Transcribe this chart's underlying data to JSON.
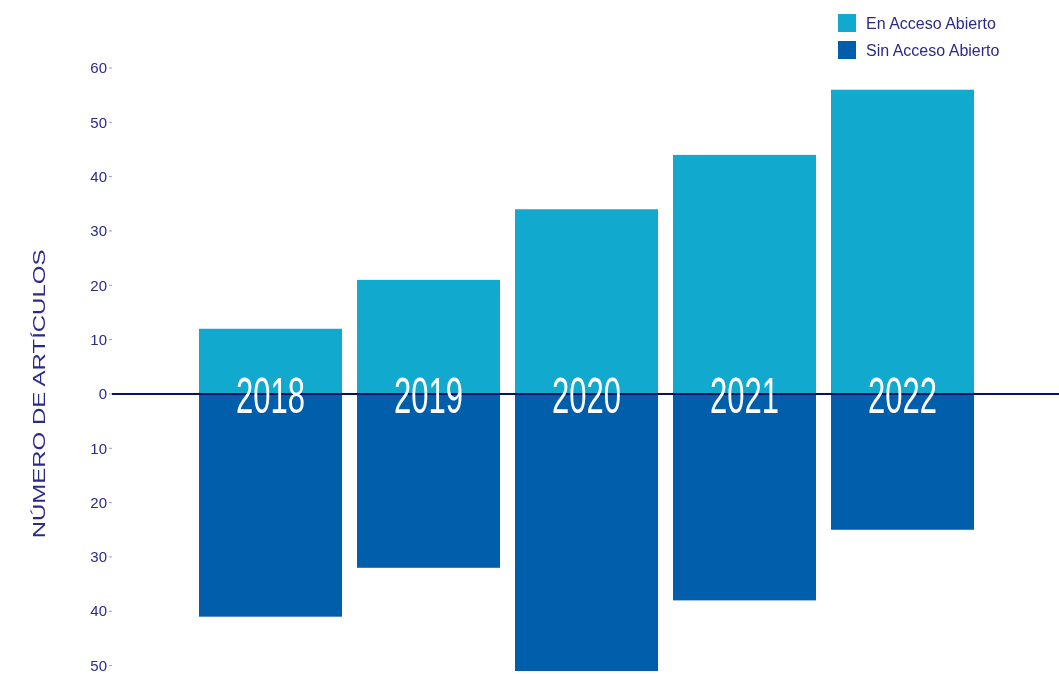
{
  "chart_data": {
    "type": "bar",
    "stacked": true,
    "ylabel": "NÚMERO DE ARTÍCULOS",
    "categories": [
      "2018",
      "2019",
      "2020",
      "2021",
      "2022"
    ],
    "series": [
      {
        "name": "En Acceso Abierto",
        "color": "#12a9ce",
        "values": [
          12,
          21,
          34,
          44,
          56
        ]
      },
      {
        "name": "Sin Acceso Abierto",
        "color": "#005eab",
        "values": [
          -41,
          -32,
          -51,
          -38,
          -25
        ]
      }
    ],
    "ylim": [
      -51,
      60
    ],
    "yticks": [
      {
        "value": -50,
        "label": "50"
      },
      {
        "value": -40,
        "label": "40"
      },
      {
        "value": -30,
        "label": "30"
      },
      {
        "value": -20,
        "label": "20"
      },
      {
        "value": -10,
        "label": "10"
      },
      0,
      10,
      20,
      30,
      40,
      50,
      60
    ],
    "legend": "top right",
    "grid": false
  }
}
